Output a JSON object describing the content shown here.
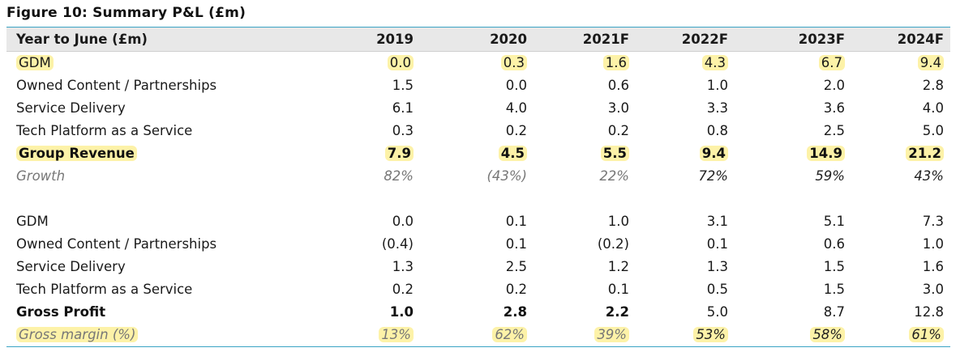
{
  "title": "Figure 10: Summary P&L (£m)",
  "header": {
    "label": "Year to June (£m)",
    "years": [
      "2019",
      "2020",
      "2021F",
      "2022F",
      "2023F",
      "2024F"
    ]
  },
  "revenue_rows": [
    {
      "label": "GDM",
      "values": [
        "0.0",
        "0.3",
        "1.6",
        "4.3",
        "6.7",
        "9.4"
      ]
    },
    {
      "label": "Owned Content / Partnerships",
      "values": [
        "1.5",
        "0.0",
        "0.6",
        "1.0",
        "2.0",
        "2.8"
      ]
    },
    {
      "label": "Service Delivery",
      "values": [
        "6.1",
        "4.0",
        "3.0",
        "3.3",
        "3.6",
        "4.0"
      ]
    },
    {
      "label": "Tech Platform as a Service",
      "values": [
        "0.3",
        "0.2",
        "0.2",
        "0.8",
        "2.5",
        "5.0"
      ]
    },
    {
      "label": "Group Revenue",
      "values": [
        "7.9",
        "4.5",
        "5.5",
        "9.4",
        "14.9",
        "21.2"
      ]
    },
    {
      "label": "Growth",
      "values": [
        "82%",
        "(43%)",
        "22%",
        "72%",
        "59%",
        "43%"
      ]
    }
  ],
  "profit_rows": [
    {
      "label": "GDM",
      "values": [
        "0.0",
        "0.1",
        "1.0",
        "3.1",
        "5.1",
        "7.3"
      ]
    },
    {
      "label": "Owned Content / Partnerships",
      "values": [
        "(0.4)",
        "0.1",
        "(0.2)",
        "0.1",
        "0.6",
        "1.0"
      ]
    },
    {
      "label": "Service Delivery",
      "values": [
        "1.3",
        "2.5",
        "1.2",
        "1.3",
        "1.5",
        "1.6"
      ]
    },
    {
      "label": "Tech Platform as a Service",
      "values": [
        "0.2",
        "0.2",
        "0.1",
        "0.5",
        "1.5",
        "3.0"
      ]
    },
    {
      "label": "Gross Profit",
      "values": [
        "1.0",
        "2.8",
        "2.2",
        "5.0",
        "8.7",
        "12.8"
      ]
    },
    {
      "label": "Gross margin (%)",
      "values": [
        "13%",
        "62%",
        "39%",
        "53%",
        "58%",
        "61%"
      ]
    }
  ],
  "colors": {
    "rule": "#3aa3c4",
    "header_bg": "#e8e8e8",
    "highlight": "#fdf2a8"
  }
}
